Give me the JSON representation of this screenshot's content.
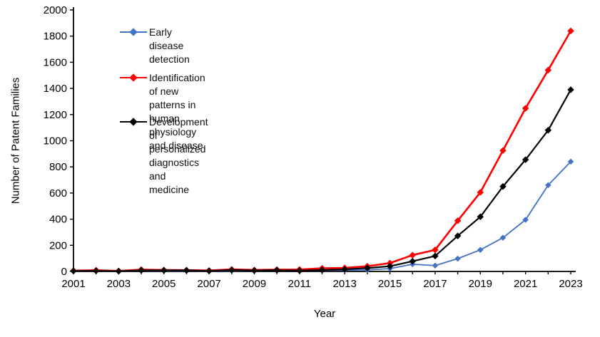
{
  "chart_data": {
    "type": "line",
    "title": "",
    "xlabel": "Year",
    "ylabel": "Number of Patent Families",
    "grid": false,
    "legend_position": "inside-top-left",
    "ylim": [
      0,
      2000
    ],
    "y_ticks": [
      0,
      200,
      400,
      600,
      800,
      1000,
      1200,
      1400,
      1600,
      1800,
      2000
    ],
    "x": [
      2001,
      2002,
      2003,
      2004,
      2005,
      2006,
      2007,
      2008,
      2009,
      2010,
      2011,
      2012,
      2013,
      2014,
      2015,
      2016,
      2017,
      2018,
      2019,
      2020,
      2021,
      2022,
      2023
    ],
    "x_tick_labels": [
      "2001",
      "2003",
      "2005",
      "2007",
      "2009",
      "2011",
      "2013",
      "2015",
      "2017",
      "2019",
      "2021",
      "2023"
    ],
    "series": [
      {
        "name": "Early disease detection",
        "color": "#4472C4",
        "marker": "diamond",
        "values": [
          3,
          6,
          2,
          6,
          5,
          5,
          3,
          6,
          6,
          8,
          8,
          8,
          10,
          12,
          22,
          55,
          45,
          98,
          165,
          258,
          395,
          660,
          840
        ]
      },
      {
        "name": "Identification of new patterns in human physiology and disease",
        "color": "#FF0000",
        "marker": "diamond",
        "values": [
          6,
          9,
          4,
          14,
          11,
          10,
          7,
          16,
          11,
          14,
          15,
          24,
          27,
          40,
          64,
          125,
          165,
          388,
          605,
          925,
          1248,
          1540,
          1840
        ]
      },
      {
        "name": "Development of personalized diagnostics and medicine",
        "color": "#000000",
        "marker": "diamond",
        "values": [
          4,
          5,
          2,
          9,
          8,
          8,
          4,
          11,
          7,
          10,
          6,
          11,
          16,
          26,
          40,
          78,
          118,
          272,
          418,
          650,
          855,
          1080,
          1390
        ]
      }
    ]
  }
}
